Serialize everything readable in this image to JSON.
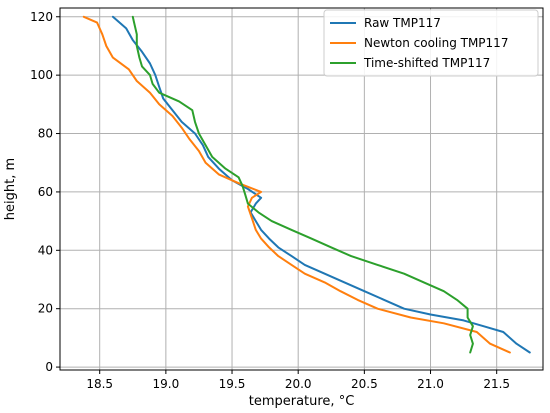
{
  "chart_data": {
    "type": "line",
    "title": "",
    "xlabel": "temperature, °C",
    "ylabel": "height, m",
    "xlim": [
      18.2,
      21.85
    ],
    "ylim": [
      -1,
      123
    ],
    "xticks": [
      "18.5",
      "19.0",
      "19.5",
      "20.0",
      "20.5",
      "21.0",
      "21.5"
    ],
    "yticks": [
      "0",
      "20",
      "40",
      "60",
      "80",
      "100",
      "120"
    ],
    "grid": true,
    "legend_position": "top-right",
    "series": [
      {
        "name": "Raw TMP117",
        "color": "#1f77b4",
        "points": [
          [
            21.75,
            5
          ],
          [
            21.65,
            8
          ],
          [
            21.55,
            12
          ],
          [
            21.4,
            14
          ],
          [
            21.25,
            16
          ],
          [
            21.0,
            18
          ],
          [
            20.8,
            20
          ],
          [
            20.65,
            23
          ],
          [
            20.5,
            26
          ],
          [
            20.35,
            29
          ],
          [
            20.2,
            32
          ],
          [
            20.05,
            35
          ],
          [
            19.95,
            38
          ],
          [
            19.85,
            41
          ],
          [
            19.78,
            44
          ],
          [
            19.72,
            47
          ],
          [
            19.68,
            50
          ],
          [
            19.64,
            53
          ],
          [
            19.68,
            56
          ],
          [
            19.72,
            58
          ],
          [
            19.62,
            61
          ],
          [
            19.5,
            64
          ],
          [
            19.4,
            68
          ],
          [
            19.32,
            72
          ],
          [
            19.28,
            76
          ],
          [
            19.22,
            80
          ],
          [
            19.12,
            84
          ],
          [
            19.05,
            88
          ],
          [
            18.98,
            92
          ],
          [
            18.95,
            96
          ],
          [
            18.92,
            100
          ],
          [
            18.88,
            104
          ],
          [
            18.82,
            108
          ],
          [
            18.75,
            112
          ],
          [
            18.7,
            116
          ],
          [
            18.6,
            120
          ]
        ]
      },
      {
        "name": "Newton cooling TMP117",
        "color": "#ff7f0e",
        "points": [
          [
            21.6,
            5
          ],
          [
            21.45,
            8
          ],
          [
            21.35,
            12
          ],
          [
            21.1,
            15
          ],
          [
            20.85,
            17
          ],
          [
            20.6,
            20
          ],
          [
            20.45,
            23
          ],
          [
            20.32,
            26
          ],
          [
            20.2,
            29
          ],
          [
            20.05,
            32
          ],
          [
            19.95,
            35
          ],
          [
            19.85,
            38
          ],
          [
            19.78,
            41
          ],
          [
            19.72,
            44
          ],
          [
            19.68,
            47
          ],
          [
            19.65,
            51
          ],
          [
            19.62,
            55
          ],
          [
            19.65,
            58
          ],
          [
            19.72,
            60
          ],
          [
            19.55,
            63
          ],
          [
            19.4,
            66
          ],
          [
            19.3,
            70
          ],
          [
            19.25,
            74
          ],
          [
            19.18,
            78
          ],
          [
            19.12,
            82
          ],
          [
            19.05,
            86
          ],
          [
            18.95,
            90
          ],
          [
            18.88,
            94
          ],
          [
            18.78,
            98
          ],
          [
            18.72,
            102
          ],
          [
            18.6,
            106
          ],
          [
            18.55,
            110
          ],
          [
            18.52,
            114
          ],
          [
            18.48,
            118
          ],
          [
            18.38,
            120
          ]
        ]
      },
      {
        "name": "Time-shifted TMP117",
        "color": "#2ca02c",
        "points": [
          [
            21.3,
            5
          ],
          [
            21.32,
            8
          ],
          [
            21.3,
            11
          ],
          [
            21.32,
            14
          ],
          [
            21.28,
            17
          ],
          [
            21.28,
            20
          ],
          [
            21.2,
            23
          ],
          [
            21.1,
            26
          ],
          [
            20.95,
            29
          ],
          [
            20.8,
            32
          ],
          [
            20.6,
            35
          ],
          [
            20.4,
            38
          ],
          [
            20.25,
            41
          ],
          [
            20.1,
            44
          ],
          [
            19.95,
            47
          ],
          [
            19.8,
            50
          ],
          [
            19.7,
            53
          ],
          [
            19.62,
            56
          ],
          [
            19.6,
            59
          ],
          [
            19.58,
            62
          ],
          [
            19.55,
            65
          ],
          [
            19.45,
            68
          ],
          [
            19.35,
            72
          ],
          [
            19.3,
            76
          ],
          [
            19.25,
            80
          ],
          [
            19.22,
            84
          ],
          [
            19.2,
            88
          ],
          [
            19.1,
            91
          ],
          [
            18.95,
            94
          ],
          [
            18.9,
            97
          ],
          [
            18.88,
            100
          ],
          [
            18.82,
            103
          ],
          [
            18.8,
            106
          ],
          [
            18.78,
            110
          ],
          [
            18.78,
            114
          ],
          [
            18.76,
            118
          ],
          [
            18.75,
            120
          ]
        ]
      }
    ]
  }
}
